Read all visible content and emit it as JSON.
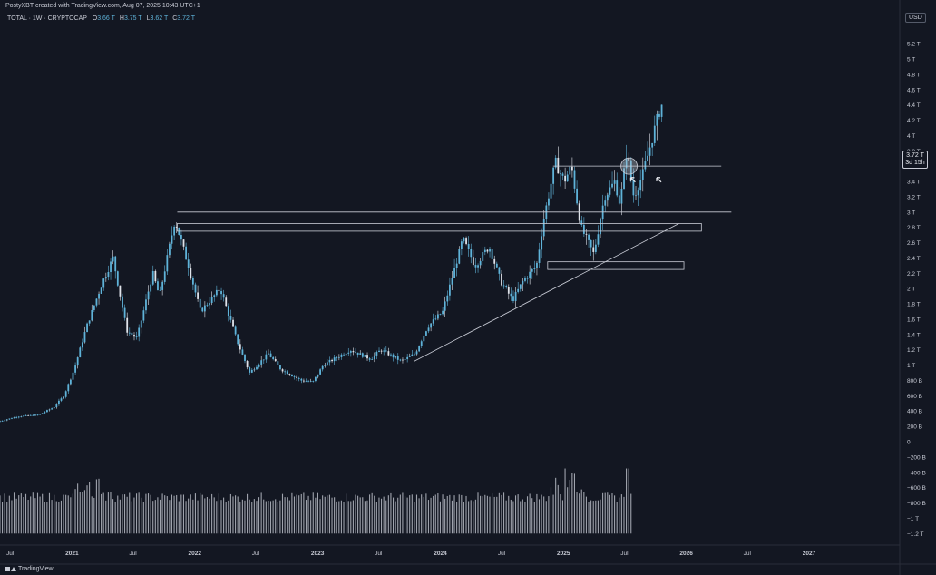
{
  "header": {
    "attribution": "PostyXBT created with TradingView.com, Aug 07, 2025 10:43 UTC+1",
    "symbol": "TOTAL · 1W · CRYPTOCAP",
    "ohlc": [
      {
        "label": "O",
        "value": "3.66 T"
      },
      {
        "label": "H",
        "value": "3.75 T"
      },
      {
        "label": "L",
        "value": "3.62 T"
      },
      {
        "label": "C",
        "value": "3.72 T"
      }
    ]
  },
  "price_axis": {
    "currency": "USD",
    "labels": [
      "5.2 T",
      "5 T",
      "4.8 T",
      "4.6 T",
      "4.4 T",
      "4.2 T",
      "4 T",
      "3.8 T",
      "3.6 T",
      "3.4 T",
      "3.2 T",
      "3 T",
      "2.8 T",
      "2.6 T",
      "2.4 T",
      "2.2 T",
      "2 T",
      "1.8 T",
      "1.6 T",
      "1.4 T",
      "1.2 T",
      "1 T",
      "800 B",
      "600 B",
      "400 B",
      "200 B",
      "0",
      "−200 B",
      "−400 B",
      "−600 B",
      "−800 B",
      "−1 T",
      "−1.2 T"
    ],
    "last_price": "3.72 T",
    "countdown": "3d 15h"
  },
  "time_axis": {
    "labels": [
      "Jul",
      "2021",
      "Jul",
      "2022",
      "Jul",
      "2023",
      "Jul",
      "2024",
      "Jul",
      "2025",
      "Jul",
      "2026",
      "Jul",
      "2027"
    ]
  },
  "footer": {
    "brand": "TradingView"
  },
  "colors": {
    "background": "#131722",
    "candles": "#5fb3d9",
    "candles_light": "#dfe3ea",
    "volume": "#b8bcc6",
    "annotation": "#c9ccd6"
  },
  "chart_data": {
    "type": "candlestick",
    "symbol": "TOTAL",
    "interval": "1W",
    "y_unit": "USD",
    "y_range": [
      "-1.2 T",
      "5.2 T"
    ],
    "x_range": [
      "2020-06",
      "2027-06"
    ],
    "price_path": [
      [
        "2020-06-01",
        0.26
      ],
      [
        "2020-08-01",
        0.33
      ],
      [
        "2020-10-01",
        0.35
      ],
      [
        "2020-11-15",
        0.45
      ],
      [
        "2020-12-15",
        0.6
      ],
      [
        "2021-01-15",
        0.95
      ],
      [
        "2021-02-20",
        1.5
      ],
      [
        "2021-04-10",
        2.1
      ],
      [
        "2021-05-10",
        2.4
      ],
      [
        "2021-06-20",
        1.45
      ],
      [
        "2021-07-20",
        1.35
      ],
      [
        "2021-09-05",
        2.2
      ],
      [
        "2021-09-25",
        1.9
      ],
      [
        "2021-11-10",
        2.9
      ],
      [
        "2021-12-20",
        2.3
      ],
      [
        "2022-01-25",
        1.7
      ],
      [
        "2022-03-25",
        2.0
      ],
      [
        "2022-05-15",
        1.3
      ],
      [
        "2022-06-20",
        0.9
      ],
      [
        "2022-08-15",
        1.15
      ],
      [
        "2022-09-20",
        0.95
      ],
      [
        "2022-11-20",
        0.8
      ],
      [
        "2022-12-25",
        0.78
      ],
      [
        "2023-01-25",
        1.0
      ],
      [
        "2023-04-15",
        1.2
      ],
      [
        "2023-06-15",
        1.08
      ],
      [
        "2023-07-15",
        1.2
      ],
      [
        "2023-09-15",
        1.05
      ],
      [
        "2023-10-25",
        1.15
      ],
      [
        "2023-12-01",
        1.5
      ],
      [
        "2024-01-15",
        1.7
      ],
      [
        "2024-03-15",
        2.65
      ],
      [
        "2024-04-20",
        2.3
      ],
      [
        "2024-06-01",
        2.55
      ],
      [
        "2024-07-05",
        2.1
      ],
      [
        "2024-08-10",
        1.85
      ],
      [
        "2024-09-10",
        2.1
      ],
      [
        "2024-10-20",
        2.3
      ],
      [
        "2024-11-10",
        2.9
      ],
      [
        "2024-12-15",
        3.65
      ],
      [
        "2025-01-10",
        3.4
      ],
      [
        "2025-02-01",
        3.6
      ],
      [
        "2025-03-01",
        2.8
      ],
      [
        "2025-04-08",
        2.45
      ],
      [
        "2025-05-10",
        3.2
      ],
      [
        "2025-06-10",
        3.4
      ],
      [
        "2025-06-25",
        3.1
      ],
      [
        "2025-07-15",
        3.8
      ],
      [
        "2025-08-05",
        3.2
      ],
      [
        "2025-09-01",
        3.5
      ],
      [
        "2025-10-01",
        4.0
      ],
      [
        "2025-10-25",
        4.4
      ]
    ],
    "volume_levels": "values roughly between -1.1 T and 0.4 T, spikes near 2021-03 and 2025-01",
    "annotations": [
      {
        "type": "horizontal_line",
        "level": 3.6,
        "from": "2024-12-01",
        "to": "2026-04-15"
      },
      {
        "type": "horizontal_line",
        "level": 3.0,
        "from": "2021-11-10",
        "to": "2026-05-15"
      },
      {
        "type": "zone",
        "low": 2.75,
        "high": 2.85,
        "from": "2021-11-10",
        "to": "2026-02-15"
      },
      {
        "type": "zone",
        "low": 2.25,
        "high": 2.35,
        "from": "2024-11-15",
        "to": "2025-12-25"
      },
      {
        "type": "trendline",
        "from": [
          "2023-10-15",
          1.05
        ],
        "to": [
          "2025-12-10",
          2.85
        ]
      },
      {
        "type": "circle",
        "at": [
          "2025-07-15",
          3.6
        ]
      },
      {
        "type": "arrow",
        "at": [
          "2025-07-20",
          3.45
        ]
      },
      {
        "type": "arrow",
        "at": [
          "2025-10-05",
          3.45
        ]
      }
    ]
  }
}
